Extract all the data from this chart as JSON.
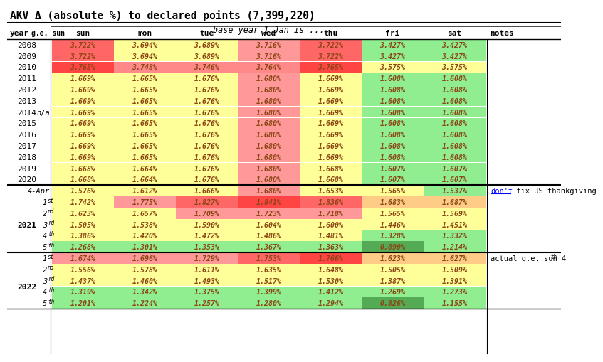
{
  "title": "AKV Δ (absolute %) to declared points (7,399,220)",
  "subtitle": "base year 1 Jan is ...",
  "col_headers": [
    "sun",
    "mon",
    "tue",
    "wed",
    "thu",
    "fri",
    "sat"
  ],
  "rows": [
    {
      "year": "2008",
      "ge_sun": "",
      "vals": [
        "3.722%",
        "3.694%",
        "3.689%",
        "3.716%",
        "3.722%",
        "3.427%",
        "3.427%"
      ],
      "colors": [
        "#FF6666",
        "#FFFF99",
        "#FFFF99",
        "#FF9999",
        "#FF6666",
        "#90EE90",
        "#90EE90"
      ],
      "note": "",
      "sep_above": false
    },
    {
      "year": "2009",
      "ge_sun": "",
      "vals": [
        "3.722%",
        "3.694%",
        "3.689%",
        "3.716%",
        "3.722%",
        "3.427%",
        "3.427%"
      ],
      "colors": [
        "#FF6666",
        "#FFFF99",
        "#FFFF99",
        "#FF9999",
        "#FF6666",
        "#90EE90",
        "#90EE90"
      ],
      "note": "",
      "sep_above": false
    },
    {
      "year": "2010",
      "ge_sun": "",
      "vals": [
        "3.765%",
        "3.748%",
        "3.746%",
        "3.764%",
        "3.765%",
        "3.575%",
        "3.575%"
      ],
      "colors": [
        "#FF4444",
        "#FF8888",
        "#FF8888",
        "#FF8888",
        "#FF4444",
        "#FFFF99",
        "#FFFF99"
      ],
      "note": "",
      "sep_above": false
    },
    {
      "year": "2011",
      "ge_sun": "",
      "vals": [
        "1.669%",
        "1.665%",
        "1.676%",
        "1.680%",
        "1.669%",
        "1.608%",
        "1.608%"
      ],
      "colors": [
        "#FFFF99",
        "#FFFF99",
        "#FFFF99",
        "#FF9999",
        "#FFFF99",
        "#90EE90",
        "#90EE90"
      ],
      "note": "",
      "sep_above": false
    },
    {
      "year": "2012",
      "ge_sun": "",
      "vals": [
        "1.669%",
        "1.665%",
        "1.676%",
        "1.680%",
        "1.669%",
        "1.608%",
        "1.608%"
      ],
      "colors": [
        "#FFFF99",
        "#FFFF99",
        "#FFFF99",
        "#FF9999",
        "#FFFF99",
        "#90EE90",
        "#90EE90"
      ],
      "note": "",
      "sep_above": false
    },
    {
      "year": "2013",
      "ge_sun": "",
      "vals": [
        "1.669%",
        "1.665%",
        "1.676%",
        "1.680%",
        "1.669%",
        "1.608%",
        "1.608%"
      ],
      "colors": [
        "#FFFF99",
        "#FFFF99",
        "#FFFF99",
        "#FF9999",
        "#FFFF99",
        "#90EE90",
        "#90EE90"
      ],
      "note": "",
      "sep_above": false
    },
    {
      "year": "2014",
      "ge_sun": "n/a",
      "vals": [
        "1.669%",
        "1.665%",
        "1.676%",
        "1.680%",
        "1.669%",
        "1.608%",
        "1.608%"
      ],
      "colors": [
        "#FFFF99",
        "#FFFF99",
        "#FFFF99",
        "#FF9999",
        "#FFFF99",
        "#90EE90",
        "#90EE90"
      ],
      "note": "",
      "sep_above": false
    },
    {
      "year": "2015",
      "ge_sun": "",
      "vals": [
        "1.669%",
        "1.665%",
        "1.676%",
        "1.680%",
        "1.669%",
        "1.608%",
        "1.608%"
      ],
      "colors": [
        "#FFFF99",
        "#FFFF99",
        "#FFFF99",
        "#FF9999",
        "#FFFF99",
        "#90EE90",
        "#90EE90"
      ],
      "note": "",
      "sep_above": false
    },
    {
      "year": "2016",
      "ge_sun": "",
      "vals": [
        "1.669%",
        "1.665%",
        "1.676%",
        "1.680%",
        "1.669%",
        "1.608%",
        "1.608%"
      ],
      "colors": [
        "#FFFF99",
        "#FFFF99",
        "#FFFF99",
        "#FF9999",
        "#FFFF99",
        "#90EE90",
        "#90EE90"
      ],
      "note": "",
      "sep_above": false
    },
    {
      "year": "2017",
      "ge_sun": "",
      "vals": [
        "1.669%",
        "1.665%",
        "1.676%",
        "1.680%",
        "1.669%",
        "1.608%",
        "1.608%"
      ],
      "colors": [
        "#FFFF99",
        "#FFFF99",
        "#FFFF99",
        "#FF9999",
        "#FFFF99",
        "#90EE90",
        "#90EE90"
      ],
      "note": "",
      "sep_above": false
    },
    {
      "year": "2018",
      "ge_sun": "",
      "vals": [
        "1.669%",
        "1.665%",
        "1.676%",
        "1.680%",
        "1.669%",
        "1.608%",
        "1.608%"
      ],
      "colors": [
        "#FFFF99",
        "#FFFF99",
        "#FFFF99",
        "#FF9999",
        "#FFFF99",
        "#90EE90",
        "#90EE90"
      ],
      "note": "",
      "sep_above": false
    },
    {
      "year": "2019",
      "ge_sun": "",
      "vals": [
        "1.668%",
        "1.664%",
        "1.676%",
        "1.680%",
        "1.668%",
        "1.607%",
        "1.607%"
      ],
      "colors": [
        "#FFFF99",
        "#FFFF99",
        "#FFFF99",
        "#FF9999",
        "#FFFF99",
        "#90EE90",
        "#90EE90"
      ],
      "note": "",
      "sep_above": false
    },
    {
      "year": "2020",
      "ge_sun": "",
      "vals": [
        "1.668%",
        "1.664%",
        "1.676%",
        "1.680%",
        "1.668%",
        "1.607%",
        "1.607%"
      ],
      "colors": [
        "#FFFF99",
        "#FFFF99",
        "#FFFF99",
        "#FF9999",
        "#FFFF99",
        "#90EE90",
        "#90EE90"
      ],
      "note": "",
      "sep_above": false
    },
    {
      "year": "",
      "ge_sun": "4-Apr",
      "vals": [
        "1.576%",
        "1.612%",
        "1.666%",
        "1.680%",
        "1.653%",
        "1.565%",
        "1.537%"
      ],
      "colors": [
        "#FFFF99",
        "#FFFF99",
        "#FFFF99",
        "#FF9999",
        "#FFFF99",
        "#FFFF99",
        "#90EE90"
      ],
      "note": "dont fix US thankgiving",
      "sep_above": true
    },
    {
      "year": "2021",
      "ge_sun": "1st",
      "vals": [
        "1.742%",
        "1.775%",
        "1.827%",
        "1.841%",
        "1.836%",
        "1.683%",
        "1.687%"
      ],
      "colors": [
        "#FFFF99",
        "#FF9999",
        "#FF6666",
        "#FF4444",
        "#FF6666",
        "#FFCC88",
        "#FFCC88"
      ],
      "note": "",
      "sep_above": false
    },
    {
      "year": "",
      "ge_sun": "2nd",
      "vals": [
        "1.623%",
        "1.657%",
        "1.709%",
        "1.723%",
        "1.718%",
        "1.565%",
        "1.569%"
      ],
      "colors": [
        "#FFFF99",
        "#FFFF99",
        "#FF9999",
        "#FF9999",
        "#FF9999",
        "#FFFF99",
        "#FFFF99"
      ],
      "note": "",
      "sep_above": false
    },
    {
      "year": "",
      "ge_sun": "3rd",
      "vals": [
        "1.505%",
        "1.538%",
        "1.590%",
        "1.604%",
        "1.600%",
        "1.446%",
        "1.451%"
      ],
      "colors": [
        "#FFFF99",
        "#FFFF99",
        "#FFFF99",
        "#FFFF99",
        "#FFFF99",
        "#FFFF99",
        "#FFFF99"
      ],
      "note": "",
      "sep_above": false
    },
    {
      "year": "",
      "ge_sun": "4th",
      "vals": [
        "1.386%",
        "1.420%",
        "1.472%",
        "1.486%",
        "1.481%",
        "1.328%",
        "1.332%"
      ],
      "colors": [
        "#FFFF99",
        "#FFFF99",
        "#FFFF99",
        "#FFFF99",
        "#FFFF99",
        "#90EE90",
        "#90EE90"
      ],
      "note": "",
      "sep_above": false
    },
    {
      "year": "",
      "ge_sun": "5th",
      "vals": [
        "1.268%",
        "1.301%",
        "1.353%",
        "1.367%",
        "1.363%",
        "0.890%",
        "1.214%"
      ],
      "colors": [
        "#90EE90",
        "#90EE90",
        "#90EE90",
        "#90EE90",
        "#90EE90",
        "#55AA55",
        "#90EE90"
      ],
      "note": "",
      "sep_above": false
    },
    {
      "year": "",
      "ge_sun": "1st",
      "vals": [
        "1.674%",
        "1.696%",
        "1.729%",
        "1.753%",
        "1.766%",
        "1.623%",
        "1.627%"
      ],
      "colors": [
        "#FF9999",
        "#FF9999",
        "#FF9999",
        "#FF6666",
        "#FF4444",
        "#FFCC88",
        "#FFCC88"
      ],
      "note": "actual g.e. sun 4th",
      "sep_above": true
    },
    {
      "year": "2022",
      "ge_sun": "2nd",
      "vals": [
        "1.556%",
        "1.578%",
        "1.611%",
        "1.635%",
        "1.648%",
        "1.505%",
        "1.509%"
      ],
      "colors": [
        "#FFFF99",
        "#FFFF99",
        "#FFFF99",
        "#FFFF99",
        "#FFFF99",
        "#FFFF99",
        "#FFFF99"
      ],
      "note": "",
      "sep_above": false
    },
    {
      "year": "",
      "ge_sun": "3rd",
      "vals": [
        "1.437%",
        "1.460%",
        "1.493%",
        "1.517%",
        "1.530%",
        "1.387%",
        "1.391%"
      ],
      "colors": [
        "#FFFF99",
        "#FFFF99",
        "#FFFF99",
        "#FFFF99",
        "#FFFF99",
        "#FFFF99",
        "#FFFF99"
      ],
      "note": "",
      "sep_above": false
    },
    {
      "year": "",
      "ge_sun": "4th",
      "vals": [
        "1.319%",
        "1.342%",
        "1.375%",
        "1.399%",
        "1.412%",
        "1.269%",
        "1.273%"
      ],
      "colors": [
        "#90EE90",
        "#90EE90",
        "#90EE90",
        "#90EE90",
        "#90EE90",
        "#90EE90",
        "#90EE90"
      ],
      "note": "",
      "sep_above": false
    },
    {
      "year": "",
      "ge_sun": "5th",
      "vals": [
        "1.201%",
        "1.224%",
        "1.257%",
        "1.280%",
        "1.294%",
        "0.826%",
        "1.155%"
      ],
      "colors": [
        "#90EE90",
        "#90EE90",
        "#90EE90",
        "#90EE90",
        "#90EE90",
        "#55AA55",
        "#90EE90"
      ],
      "note": "",
      "sep_above": false
    }
  ]
}
